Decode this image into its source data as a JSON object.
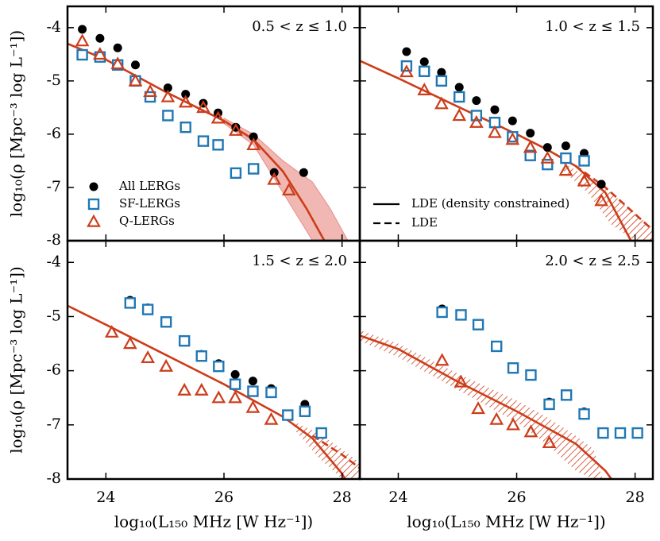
{
  "chart_data": [
    {
      "type": "scatter",
      "annotation": "0.5 < z ≤ 1.0",
      "ylabel": "log₁₀(ρ [Mpc⁻³ log L⁻¹])",
      "xlim": [
        23.35,
        28.3
      ],
      "ylim": [
        -8,
        -3.6
      ],
      "xticks": [
        24,
        26,
        28
      ],
      "yticks": [
        -8,
        -7,
        -6,
        -5,
        -4
      ],
      "series": [
        {
          "name": "All LERGs",
          "color": "#000000",
          "marker": "circle",
          "x": [
            23.6,
            23.9,
            24.2,
            24.5,
            25.05,
            25.35,
            25.65,
            25.9,
            26.2,
            26.5,
            26.85,
            27.35
          ],
          "values": [
            -4.03,
            -4.2,
            -4.38,
            -4.7,
            -5.13,
            -5.25,
            -5.42,
            -5.6,
            -5.87,
            -6.05,
            -6.72,
            -6.72
          ]
        },
        {
          "name": "SF-LERGs",
          "color": "#1f77b4",
          "marker": "square",
          "x": [
            23.6,
            23.9,
            24.2,
            24.5,
            24.75,
            25.05,
            25.35,
            25.65,
            25.9,
            26.2,
            26.5
          ],
          "values": [
            -4.51,
            -4.55,
            -4.7,
            -5.0,
            -5.3,
            -5.65,
            -5.87,
            -6.13,
            -6.2,
            -6.73,
            -6.65
          ]
        },
        {
          "name": "Q-LERGs",
          "color": "#cc3d1a",
          "marker": "triangle",
          "x": [
            23.6,
            23.9,
            24.2,
            24.5,
            24.75,
            25.05,
            25.35,
            25.65,
            25.9,
            26.2,
            26.5,
            26.85,
            27.1
          ],
          "values": [
            -4.25,
            -4.5,
            -4.68,
            -5.0,
            -5.2,
            -5.3,
            -5.4,
            -5.5,
            -5.7,
            -5.93,
            -6.2,
            -6.85,
            -7.05
          ]
        }
      ],
      "models": [
        {
          "style": "solid",
          "color": "#cc3d1a",
          "x": [
            23.35,
            24,
            25,
            26,
            26.5,
            27,
            27.4,
            27.7
          ],
          "values": [
            -4.3,
            -4.6,
            -5.2,
            -5.75,
            -6.1,
            -6.7,
            -7.4,
            -8
          ]
        }
      ],
      "bands": [
        {
          "fill": "shade",
          "color": "#e8908a",
          "x": [
            26,
            26.5,
            27,
            27.5,
            27.8,
            28.1
          ],
          "lower": [
            -5.8,
            -6.2,
            -7.1,
            -8,
            -8,
            -8
          ],
          "upper": [
            -5.7,
            -6.0,
            -6.5,
            -6.9,
            -7.4,
            -8
          ]
        }
      ],
      "legend": "lower left"
    },
    {
      "type": "scatter",
      "annotation": "1.0 < z ≤ 1.5",
      "xlim": [
        23.35,
        28.3
      ],
      "ylim": [
        -8,
        -3.6
      ],
      "xticks": [
        24,
        26,
        28
      ],
      "yticks": [
        -8,
        -7,
        -6,
        -5,
        -4
      ],
      "series": [
        {
          "color": "#000000",
          "marker": "circle",
          "x": [
            24.14,
            24.44,
            24.73,
            25.03,
            25.32,
            25.63,
            25.93,
            26.23,
            26.52,
            26.83,
            27.14,
            27.43
          ],
          "values": [
            -4.45,
            -4.64,
            -4.84,
            -5.12,
            -5.37,
            -5.54,
            -5.75,
            -5.98,
            -6.25,
            -6.22,
            -6.36,
            -6.94
          ]
        },
        {
          "color": "#1f77b4",
          "marker": "square",
          "x": [
            24.14,
            24.44,
            24.73,
            25.03,
            25.32,
            25.63,
            25.93,
            26.23,
            26.52,
            26.83,
            27.14
          ],
          "values": [
            -4.72,
            -4.82,
            -5.0,
            -5.3,
            -5.65,
            -5.78,
            -6.05,
            -6.4,
            -6.57,
            -6.45,
            -6.5
          ]
        },
        {
          "color": "#cc3d1a",
          "marker": "triangle",
          "x": [
            24.14,
            24.44,
            24.73,
            25.03,
            25.32,
            25.63,
            25.93,
            26.23,
            26.52,
            26.83,
            27.14,
            27.43
          ],
          "values": [
            -4.83,
            -5.17,
            -5.43,
            -5.65,
            -5.78,
            -5.97,
            -6.1,
            -6.25,
            -6.45,
            -6.68,
            -6.88,
            -7.25
          ]
        }
      ],
      "models": [
        {
          "name": "LDE (density constrained)",
          "style": "solid",
          "color": "#cc3d1a",
          "x": [
            23.35,
            24,
            25,
            26,
            26.5,
            27,
            27.5,
            27.93
          ],
          "values": [
            -4.62,
            -4.95,
            -5.48,
            -6.0,
            -6.28,
            -6.6,
            -7.1,
            -8
          ]
        },
        {
          "name": "LDE",
          "style": "dashed",
          "color": "#cc3d1a",
          "x": [
            26.5,
            27,
            27.5,
            28,
            28.35
          ],
          "values": [
            -6.28,
            -6.6,
            -7.0,
            -7.5,
            -7.85
          ]
        }
      ],
      "bands": [
        {
          "fill": "hatch",
          "color": "#cc3d1a",
          "x": [
            26.8,
            27.2,
            27.6,
            28,
            28.35
          ],
          "lower": [
            -6.7,
            -7.1,
            -7.7,
            -8,
            -8
          ],
          "upper": [
            -6.55,
            -6.8,
            -7.1,
            -7.5,
            -7.8
          ]
        }
      ],
      "legend": "lower left"
    },
    {
      "type": "scatter",
      "annotation": "1.5 < z ≤ 2.0",
      "ylabel": "log₁₀(ρ [Mpc⁻³ log L⁻¹])",
      "xlabel": "log₁₀(L₁₅₀ MHz [W Hz⁻¹])",
      "xlim": [
        23.35,
        28.3
      ],
      "ylim": [
        -8,
        -3.6
      ],
      "xticks": [
        24,
        26,
        28
      ],
      "yticks": [
        -8,
        -7,
        -6,
        -5,
        -4
      ],
      "series": [
        {
          "color": "#000000",
          "marker": "circle",
          "x": [
            24.41,
            24.71,
            25.02,
            25.33,
            25.62,
            25.91,
            26.19,
            26.49,
            26.8,
            27.08,
            27.37,
            27.65
          ],
          "values": [
            -4.7,
            -4.84,
            -5.08,
            -5.44,
            -5.7,
            -5.87,
            -6.07,
            -6.19,
            -6.33,
            -6.8,
            -6.62,
            -7.13
          ]
        },
        {
          "color": "#1f77b4",
          "marker": "square",
          "x": [
            24.41,
            24.71,
            25.02,
            25.33,
            25.62,
            25.91,
            26.19,
            26.49,
            26.8,
            27.08,
            27.37,
            27.65
          ],
          "values": [
            -4.75,
            -4.87,
            -5.1,
            -5.45,
            -5.73,
            -5.92,
            -6.25,
            -6.38,
            -6.4,
            -6.82,
            -6.75,
            -7.15
          ]
        },
        {
          "color": "#cc3d1a",
          "marker": "triangle",
          "x": [
            24.1,
            24.41,
            24.71,
            25.02,
            25.33,
            25.62,
            25.91,
            26.19,
            26.49,
            26.8
          ],
          "values": [
            -5.29,
            -5.5,
            -5.76,
            -5.92,
            -6.36,
            -6.36,
            -6.5,
            -6.5,
            -6.68,
            -6.9
          ]
        }
      ],
      "models": [
        {
          "style": "solid",
          "color": "#cc3d1a",
          "x": [
            23.35,
            24,
            25,
            26,
            27,
            27.5,
            28,
            28.05
          ],
          "values": [
            -4.8,
            -5.15,
            -5.7,
            -6.25,
            -6.85,
            -7.25,
            -7.9,
            -8
          ]
        },
        {
          "style": "dashed",
          "color": "#cc3d1a",
          "x": [
            27.5,
            28,
            28.3
          ],
          "values": [
            -7.2,
            -7.55,
            -7.8
          ]
        }
      ],
      "bands": [
        {
          "fill": "hatch",
          "color": "#cc3d1a",
          "x": [
            27.2,
            27.6,
            28,
            28.3
          ],
          "lower": [
            -7.1,
            -7.6,
            -8,
            -8
          ],
          "upper": [
            -6.95,
            -7.15,
            -7.45,
            -7.7
          ]
        }
      ]
    },
    {
      "type": "scatter",
      "annotation": "2.0 < z ≤ 2.5",
      "xlabel": "log₁₀(L₁₅₀ MHz [W Hz⁻¹])",
      "xlim": [
        23.35,
        28.3
      ],
      "ylim": [
        -8,
        -3.6
      ],
      "xticks": [
        24,
        26,
        28
      ],
      "yticks": [
        -8,
        -7,
        -6,
        -5,
        -4
      ],
      "series": [
        {
          "color": "#000000",
          "marker": "circle",
          "x": [
            24.74,
            25.06,
            25.35,
            25.66,
            25.94,
            26.24,
            26.55,
            26.84,
            27.14,
            27.46,
            27.75,
            28.04
          ],
          "values": [
            -4.86,
            -4.95,
            -5.13,
            -5.53,
            -5.94,
            -6.07,
            -6.58,
            -6.43,
            -6.76,
            -7.14,
            -7.14,
            -7.14
          ]
        },
        {
          "color": "#1f77b4",
          "marker": "square",
          "x": [
            24.74,
            25.06,
            25.35,
            25.66,
            25.94,
            26.24,
            26.55,
            26.84,
            27.14,
            27.46,
            27.75,
            28.04
          ],
          "values": [
            -4.92,
            -4.97,
            -5.15,
            -5.55,
            -5.95,
            -6.08,
            -6.62,
            -6.45,
            -6.8,
            -7.15,
            -7.15,
            -7.15
          ]
        },
        {
          "color": "#cc3d1a",
          "marker": "triangle",
          "x": [
            24.74,
            25.06,
            25.35,
            25.66,
            25.94,
            26.24,
            26.55
          ],
          "values": [
            -5.81,
            -6.21,
            -6.7,
            -6.9,
            -7.0,
            -7.13,
            -7.33
          ]
        }
      ],
      "models": [
        {
          "style": "solid",
          "color": "#cc3d1a",
          "x": [
            23.35,
            24,
            25,
            26,
            27,
            27.5,
            27.6
          ],
          "values": [
            -5.35,
            -5.6,
            -6.2,
            -6.75,
            -7.35,
            -7.85,
            -8
          ]
        }
      ],
      "bands": [
        {
          "fill": "hatch",
          "color": "#cc3d1a",
          "x": [
            23.35,
            24,
            25,
            26,
            26.5,
            27,
            27.3,
            27.45
          ],
          "lower": [
            -5.45,
            -5.75,
            -6.35,
            -6.95,
            -7.35,
            -7.85,
            -8,
            -8
          ],
          "upper": [
            -5.25,
            -5.5,
            -6.05,
            -6.55,
            -6.85,
            -7.2,
            -7.45,
            -8
          ]
        }
      ]
    }
  ]
}
